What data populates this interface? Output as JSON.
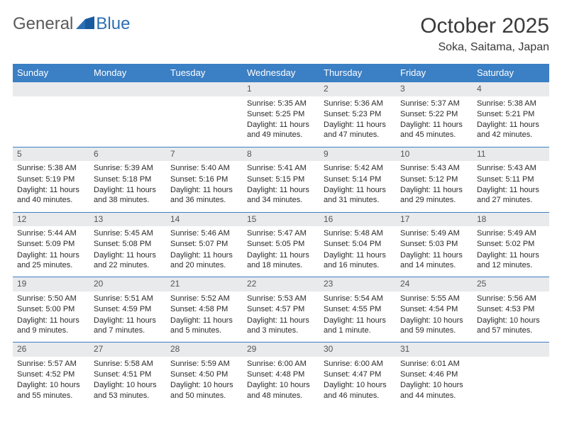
{
  "logo": {
    "text1": "General",
    "text2": "Blue"
  },
  "title": "October 2025",
  "location": "Soka, Saitama, Japan",
  "colors": {
    "header_bg": "#3b7fc4",
    "header_text": "#ffffff",
    "daynum_bg": "#e9eaec",
    "border": "#3b7fc4",
    "logo_gray": "#5a5a5a",
    "logo_blue": "#2d6fb5"
  },
  "day_headers": [
    "Sunday",
    "Monday",
    "Tuesday",
    "Wednesday",
    "Thursday",
    "Friday",
    "Saturday"
  ],
  "weeks": [
    [
      {
        "num": "",
        "empty": true
      },
      {
        "num": "",
        "empty": true
      },
      {
        "num": "",
        "empty": true
      },
      {
        "num": "1",
        "sunrise": "Sunrise: 5:35 AM",
        "sunset": "Sunset: 5:25 PM",
        "daylight": "Daylight: 11 hours and 49 minutes."
      },
      {
        "num": "2",
        "sunrise": "Sunrise: 5:36 AM",
        "sunset": "Sunset: 5:23 PM",
        "daylight": "Daylight: 11 hours and 47 minutes."
      },
      {
        "num": "3",
        "sunrise": "Sunrise: 5:37 AM",
        "sunset": "Sunset: 5:22 PM",
        "daylight": "Daylight: 11 hours and 45 minutes."
      },
      {
        "num": "4",
        "sunrise": "Sunrise: 5:38 AM",
        "sunset": "Sunset: 5:21 PM",
        "daylight": "Daylight: 11 hours and 42 minutes."
      }
    ],
    [
      {
        "num": "5",
        "sunrise": "Sunrise: 5:38 AM",
        "sunset": "Sunset: 5:19 PM",
        "daylight": "Daylight: 11 hours and 40 minutes."
      },
      {
        "num": "6",
        "sunrise": "Sunrise: 5:39 AM",
        "sunset": "Sunset: 5:18 PM",
        "daylight": "Daylight: 11 hours and 38 minutes."
      },
      {
        "num": "7",
        "sunrise": "Sunrise: 5:40 AM",
        "sunset": "Sunset: 5:16 PM",
        "daylight": "Daylight: 11 hours and 36 minutes."
      },
      {
        "num": "8",
        "sunrise": "Sunrise: 5:41 AM",
        "sunset": "Sunset: 5:15 PM",
        "daylight": "Daylight: 11 hours and 34 minutes."
      },
      {
        "num": "9",
        "sunrise": "Sunrise: 5:42 AM",
        "sunset": "Sunset: 5:14 PM",
        "daylight": "Daylight: 11 hours and 31 minutes."
      },
      {
        "num": "10",
        "sunrise": "Sunrise: 5:43 AM",
        "sunset": "Sunset: 5:12 PM",
        "daylight": "Daylight: 11 hours and 29 minutes."
      },
      {
        "num": "11",
        "sunrise": "Sunrise: 5:43 AM",
        "sunset": "Sunset: 5:11 PM",
        "daylight": "Daylight: 11 hours and 27 minutes."
      }
    ],
    [
      {
        "num": "12",
        "sunrise": "Sunrise: 5:44 AM",
        "sunset": "Sunset: 5:09 PM",
        "daylight": "Daylight: 11 hours and 25 minutes."
      },
      {
        "num": "13",
        "sunrise": "Sunrise: 5:45 AM",
        "sunset": "Sunset: 5:08 PM",
        "daylight": "Daylight: 11 hours and 22 minutes."
      },
      {
        "num": "14",
        "sunrise": "Sunrise: 5:46 AM",
        "sunset": "Sunset: 5:07 PM",
        "daylight": "Daylight: 11 hours and 20 minutes."
      },
      {
        "num": "15",
        "sunrise": "Sunrise: 5:47 AM",
        "sunset": "Sunset: 5:05 PM",
        "daylight": "Daylight: 11 hours and 18 minutes."
      },
      {
        "num": "16",
        "sunrise": "Sunrise: 5:48 AM",
        "sunset": "Sunset: 5:04 PM",
        "daylight": "Daylight: 11 hours and 16 minutes."
      },
      {
        "num": "17",
        "sunrise": "Sunrise: 5:49 AM",
        "sunset": "Sunset: 5:03 PM",
        "daylight": "Daylight: 11 hours and 14 minutes."
      },
      {
        "num": "18",
        "sunrise": "Sunrise: 5:49 AM",
        "sunset": "Sunset: 5:02 PM",
        "daylight": "Daylight: 11 hours and 12 minutes."
      }
    ],
    [
      {
        "num": "19",
        "sunrise": "Sunrise: 5:50 AM",
        "sunset": "Sunset: 5:00 PM",
        "daylight": "Daylight: 11 hours and 9 minutes."
      },
      {
        "num": "20",
        "sunrise": "Sunrise: 5:51 AM",
        "sunset": "Sunset: 4:59 PM",
        "daylight": "Daylight: 11 hours and 7 minutes."
      },
      {
        "num": "21",
        "sunrise": "Sunrise: 5:52 AM",
        "sunset": "Sunset: 4:58 PM",
        "daylight": "Daylight: 11 hours and 5 minutes."
      },
      {
        "num": "22",
        "sunrise": "Sunrise: 5:53 AM",
        "sunset": "Sunset: 4:57 PM",
        "daylight": "Daylight: 11 hours and 3 minutes."
      },
      {
        "num": "23",
        "sunrise": "Sunrise: 5:54 AM",
        "sunset": "Sunset: 4:55 PM",
        "daylight": "Daylight: 11 hours and 1 minute."
      },
      {
        "num": "24",
        "sunrise": "Sunrise: 5:55 AM",
        "sunset": "Sunset: 4:54 PM",
        "daylight": "Daylight: 10 hours and 59 minutes."
      },
      {
        "num": "25",
        "sunrise": "Sunrise: 5:56 AM",
        "sunset": "Sunset: 4:53 PM",
        "daylight": "Daylight: 10 hours and 57 minutes."
      }
    ],
    [
      {
        "num": "26",
        "sunrise": "Sunrise: 5:57 AM",
        "sunset": "Sunset: 4:52 PM",
        "daylight": "Daylight: 10 hours and 55 minutes."
      },
      {
        "num": "27",
        "sunrise": "Sunrise: 5:58 AM",
        "sunset": "Sunset: 4:51 PM",
        "daylight": "Daylight: 10 hours and 53 minutes."
      },
      {
        "num": "28",
        "sunrise": "Sunrise: 5:59 AM",
        "sunset": "Sunset: 4:50 PM",
        "daylight": "Daylight: 10 hours and 50 minutes."
      },
      {
        "num": "29",
        "sunrise": "Sunrise: 6:00 AM",
        "sunset": "Sunset: 4:48 PM",
        "daylight": "Daylight: 10 hours and 48 minutes."
      },
      {
        "num": "30",
        "sunrise": "Sunrise: 6:00 AM",
        "sunset": "Sunset: 4:47 PM",
        "daylight": "Daylight: 10 hours and 46 minutes."
      },
      {
        "num": "31",
        "sunrise": "Sunrise: 6:01 AM",
        "sunset": "Sunset: 4:46 PM",
        "daylight": "Daylight: 10 hours and 44 minutes."
      },
      {
        "num": "",
        "empty": true
      }
    ]
  ]
}
